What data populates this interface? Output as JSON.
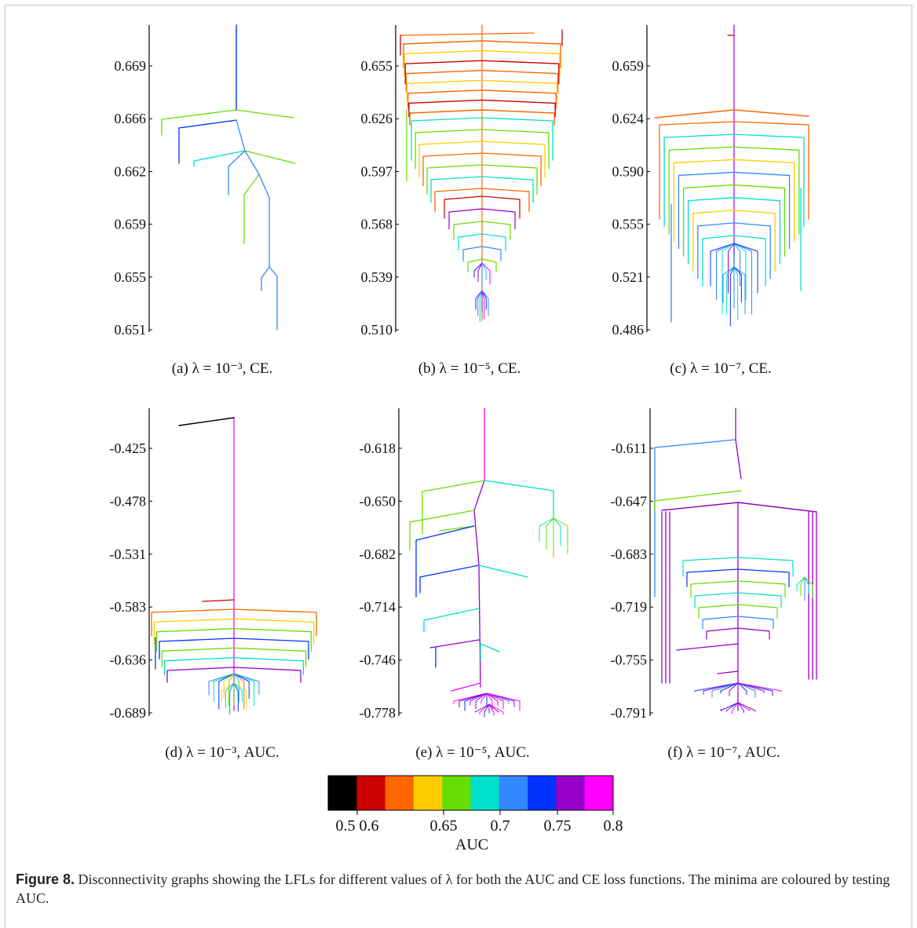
{
  "panels": [
    {
      "id": "a",
      "caption": "(a) λ = 10⁻³, CE.",
      "ticks": [
        "0.669",
        "0.666",
        "0.662",
        "0.659",
        "0.655",
        "0.651"
      ]
    },
    {
      "id": "b",
      "caption": "(b) λ = 10⁻⁵, CE.",
      "ticks": [
        "0.655",
        "0.626",
        "0.597",
        "0.568",
        "0.539",
        "0.510"
      ]
    },
    {
      "id": "c",
      "caption": "(c) λ = 10⁻⁷, CE.",
      "ticks": [
        "0.659",
        "0.624",
        "0.590",
        "0.555",
        "0.521",
        "0.486"
      ]
    },
    {
      "id": "d",
      "caption": "(d) λ = 10⁻³, AUC.",
      "ticks": [
        "-0.425",
        "-0.478",
        "-0.531",
        "-0.583",
        "-0.636",
        "-0.689"
      ]
    },
    {
      "id": "e",
      "caption": "(e) λ = 10⁻⁵, AUC.",
      "ticks": [
        "-0.618",
        "-0.650",
        "-0.682",
        "-0.714",
        "-0.746",
        "-0.778"
      ]
    },
    {
      "id": "f",
      "caption": "(f) λ = 10⁻⁷, AUC.",
      "ticks": [
        "-0.611",
        "-0.647",
        "-0.683",
        "-0.719",
        "-0.755",
        "-0.791"
      ]
    }
  ],
  "colorbar": {
    "label": "AUC",
    "colors": [
      "#000000",
      "#cc0000",
      "#ff6600",
      "#ffcc00",
      "#66dd00",
      "#00e0cc",
      "#3388ff",
      "#0033ff",
      "#9900cc",
      "#ff00ff"
    ],
    "tick_labels": [
      "0.5",
      "0.6",
      "0.65",
      "0.7",
      "0.75",
      "0.8"
    ]
  },
  "caption": {
    "label": "Figure 8.",
    "text": " Disconnectivity graphs showing the LFLs for different values of λ for both the AUC and CE loss functions. The minima are coloured by testing AUC."
  }
}
